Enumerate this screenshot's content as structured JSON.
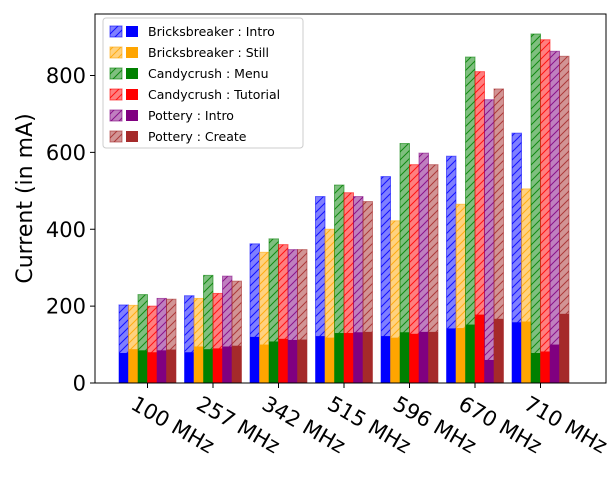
{
  "chart_data": {
    "type": "bar",
    "ylabel": "Current (in mA)",
    "xlabel": "",
    "ylim": [
      0,
      960
    ],
    "yticks": [
      0,
      200,
      400,
      600,
      800
    ],
    "categories": [
      "100 MHz",
      "257 MHz",
      "342 MHz",
      "515 MHz",
      "596 MHz",
      "670 MHz",
      "710 MHz"
    ],
    "legend_position": "top-left",
    "series": [
      {
        "name": "Bricksbreaker : Intro",
        "color": "#0000ff",
        "total": [
          203,
          227,
          362,
          485,
          537,
          590,
          650
        ],
        "base": [
          78,
          80,
          120,
          122,
          122,
          142,
          158
        ]
      },
      {
        "name": "Bricksbreaker : Still",
        "color": "#ffa500",
        "total": [
          202,
          220,
          340,
          400,
          422,
          465,
          505
        ],
        "base": [
          88,
          95,
          100,
          118,
          118,
          143,
          160
        ]
      },
      {
        "name": "Candycrush : Menu",
        "color": "#008000",
        "total": [
          230,
          280,
          375,
          515,
          623,
          848,
          908
        ],
        "base": [
          85,
          88,
          108,
          130,
          132,
          152,
          78
        ]
      },
      {
        "name": "Candycrush : Tutorial",
        "color": "#ff0000",
        "total": [
          200,
          233,
          360,
          495,
          568,
          810,
          893
        ],
        "base": [
          80,
          90,
          115,
          130,
          128,
          178,
          82
        ]
      },
      {
        "name": "Pottery : Intro",
        "color": "#800080",
        "total": [
          220,
          278,
          347,
          485,
          598,
          737,
          863
        ],
        "base": [
          85,
          95,
          112,
          132,
          133,
          60,
          100
        ]
      },
      {
        "name": "Pottery : Create",
        "color": "#a52a2a",
        "total": [
          218,
          265,
          347,
          472,
          568,
          765,
          850
        ],
        "base": [
          87,
          97,
          113,
          133,
          133,
          167,
          180
        ]
      }
    ]
  }
}
